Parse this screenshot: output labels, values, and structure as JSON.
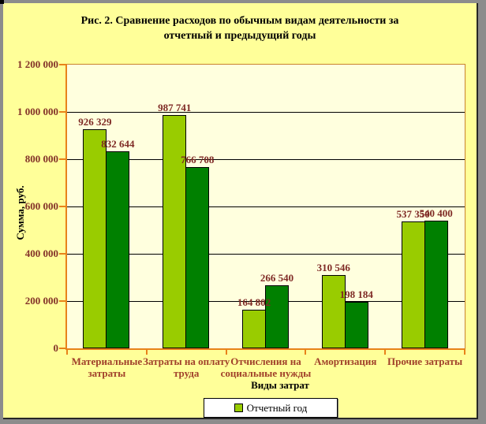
{
  "chart_data": {
    "type": "bar",
    "title": "Рис. 2. Сравнение расходов по обычным видам деятельности за отчетный и предыдущий годы",
    "title_lines": [
      "Рис. 2. Сравнение расходов по обычным видам деятельности за",
      "отчетный и предыдущий годы"
    ],
    "xlabel": "Виды затрат",
    "ylabel": "Сумма, руб.",
    "ylim": [
      0,
      1200000
    ],
    "ytick_values": [
      0,
      200000,
      400000,
      600000,
      800000,
      1000000,
      1200000
    ],
    "ytick_labels": [
      "0",
      "200 000",
      "400 000",
      "600 000",
      "800 000",
      "1 000 000",
      "1 200 000"
    ],
    "grid": true,
    "legend_position": "bottom",
    "categories": [
      "Материальные затраты",
      "Затраты на оплату труда",
      "Отчисления на социальные нужды",
      "Амортизация",
      "Прочие затраты"
    ],
    "series": [
      {
        "name": "Отчетный год",
        "color": "#99CC00",
        "values": [
          926329,
          987741,
          164802,
          310546,
          537350
        ],
        "labels": [
          "926 329",
          "987 741",
          "164 802",
          "310 546",
          "537 350"
        ]
      },
      {
        "name": "",
        "color": "#008000",
        "values": [
          832644,
          766708,
          266540,
          198184,
          540400
        ],
        "labels": [
          "832 644",
          "766 708",
          "266 540",
          "198 184",
          "540 400"
        ]
      }
    ],
    "colors": {
      "chart_bg": "#FFFF99",
      "plot_bg": "#FFFFDE",
      "axis": "#E8821A",
      "plot_border": "#C9822D",
      "gridline": "#000000",
      "tick_label": "#833229",
      "value_label": "#7F2A25",
      "category_label": "#A0402A",
      "frame": "#8C8C8C"
    }
  }
}
